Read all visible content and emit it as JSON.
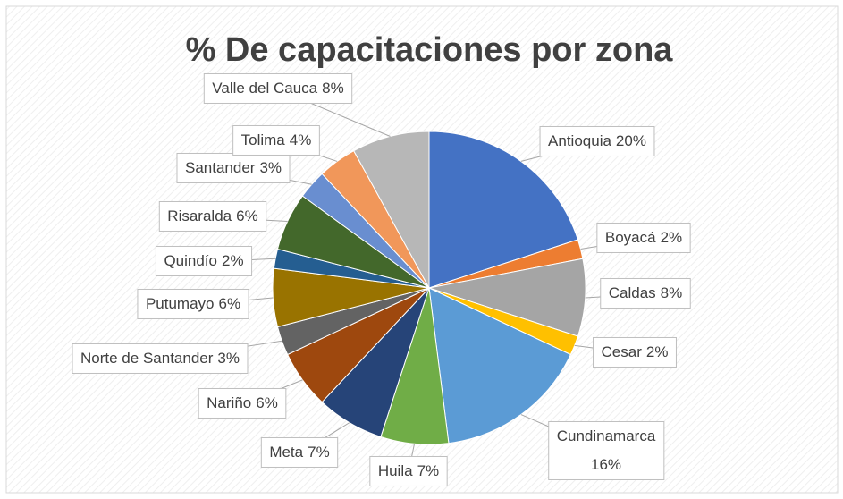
{
  "chart_data": {
    "type": "pie",
    "title": "% De capacitaciones por zona",
    "categories": [
      "Antioquia",
      "Boyacá",
      "Caldas",
      "Cesar",
      "Cundinamarca",
      "Huila",
      "Meta",
      "Nariño",
      "Norte de Santander",
      "Putumayo",
      "Quindío",
      "Risaralda",
      "Santander",
      "Tolima",
      "Valle del Cauca"
    ],
    "values": [
      20,
      2,
      8,
      2,
      16,
      7,
      7,
      6,
      3,
      6,
      2,
      6,
      3,
      4,
      8
    ],
    "value_labels": [
      "20%",
      "2%",
      "8%",
      "2%",
      "16%",
      "7%",
      "7%",
      "6%",
      "3%",
      "6%",
      "2%",
      "6%",
      "3%",
      "4%",
      "8%"
    ],
    "colors": [
      "#4472c4",
      "#ed7d31",
      "#a5a5a5",
      "#ffc000",
      "#5b9bd5",
      "#70ad47",
      "#264478",
      "#9e480e",
      "#636363",
      "#997300",
      "#255e91",
      "#43682b",
      "#698ed0",
      "#f1975a",
      "#b7b7b7"
    ]
  }
}
